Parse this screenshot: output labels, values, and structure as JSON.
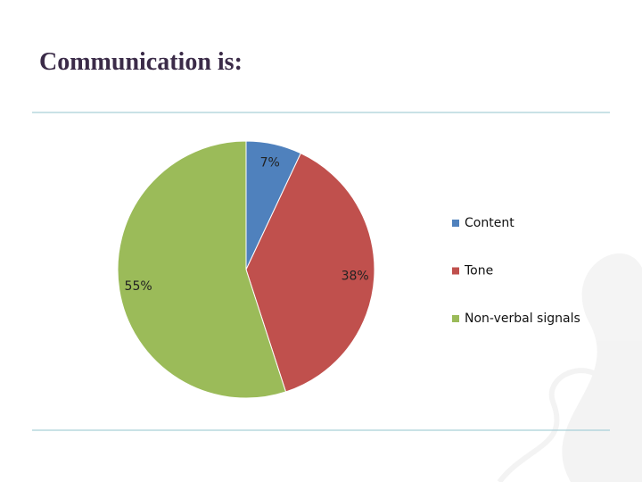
{
  "chart_data": {
    "type": "pie",
    "title": "Communication is:",
    "categories": [
      "Content",
      "Tone",
      "Non-verbal signals"
    ],
    "values": [
      7,
      38,
      55
    ],
    "value_labels": [
      "7%",
      "38%",
      "55%"
    ],
    "colors": [
      "#4f81bd",
      "#c0504d",
      "#9bbb59"
    ],
    "legend": "right"
  }
}
